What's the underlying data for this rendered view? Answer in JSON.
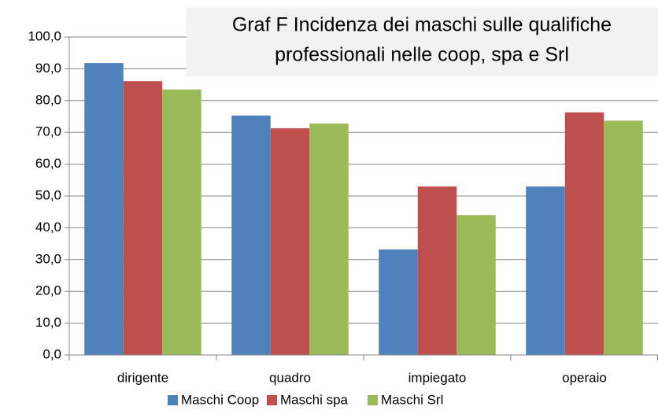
{
  "chart_data": {
    "type": "bar",
    "title": [
      "Graf F Incidenza dei maschi sulle qualifiche",
      "professionali  nelle coop, spa e Srl"
    ],
    "categories": [
      "dirigente",
      "quadro",
      "impiegato",
      "operaio"
    ],
    "series": [
      {
        "name": "Maschi Coop",
        "color": "#4f81bd",
        "values": [
          91.8,
          75.3,
          33.2,
          53.0
        ]
      },
      {
        "name": "Maschi spa",
        "color": "#c0504d",
        "values": [
          86.1,
          71.3,
          53.0,
          76.3
        ]
      },
      {
        "name": "Maschi Srl",
        "color": "#9bbb59",
        "values": [
          83.5,
          72.8,
          44.0,
          73.7
        ]
      }
    ],
    "ylim": [
      0,
      100
    ],
    "yticks": [
      {
        "value": 0,
        "label": "0,0"
      },
      {
        "value": 10,
        "label": "10,0"
      },
      {
        "value": 20,
        "label": "20,0"
      },
      {
        "value": 30,
        "label": "30,0"
      },
      {
        "value": 40,
        "label": "40,0"
      },
      {
        "value": 50,
        "label": "50,0"
      },
      {
        "value": 60,
        "label": "60,0"
      },
      {
        "value": 70,
        "label": "70,0"
      },
      {
        "value": 80,
        "label": "80,0"
      },
      {
        "value": 90,
        "label": "90,0"
      },
      {
        "value": 100,
        "label": "100,0"
      }
    ],
    "grid": true
  }
}
